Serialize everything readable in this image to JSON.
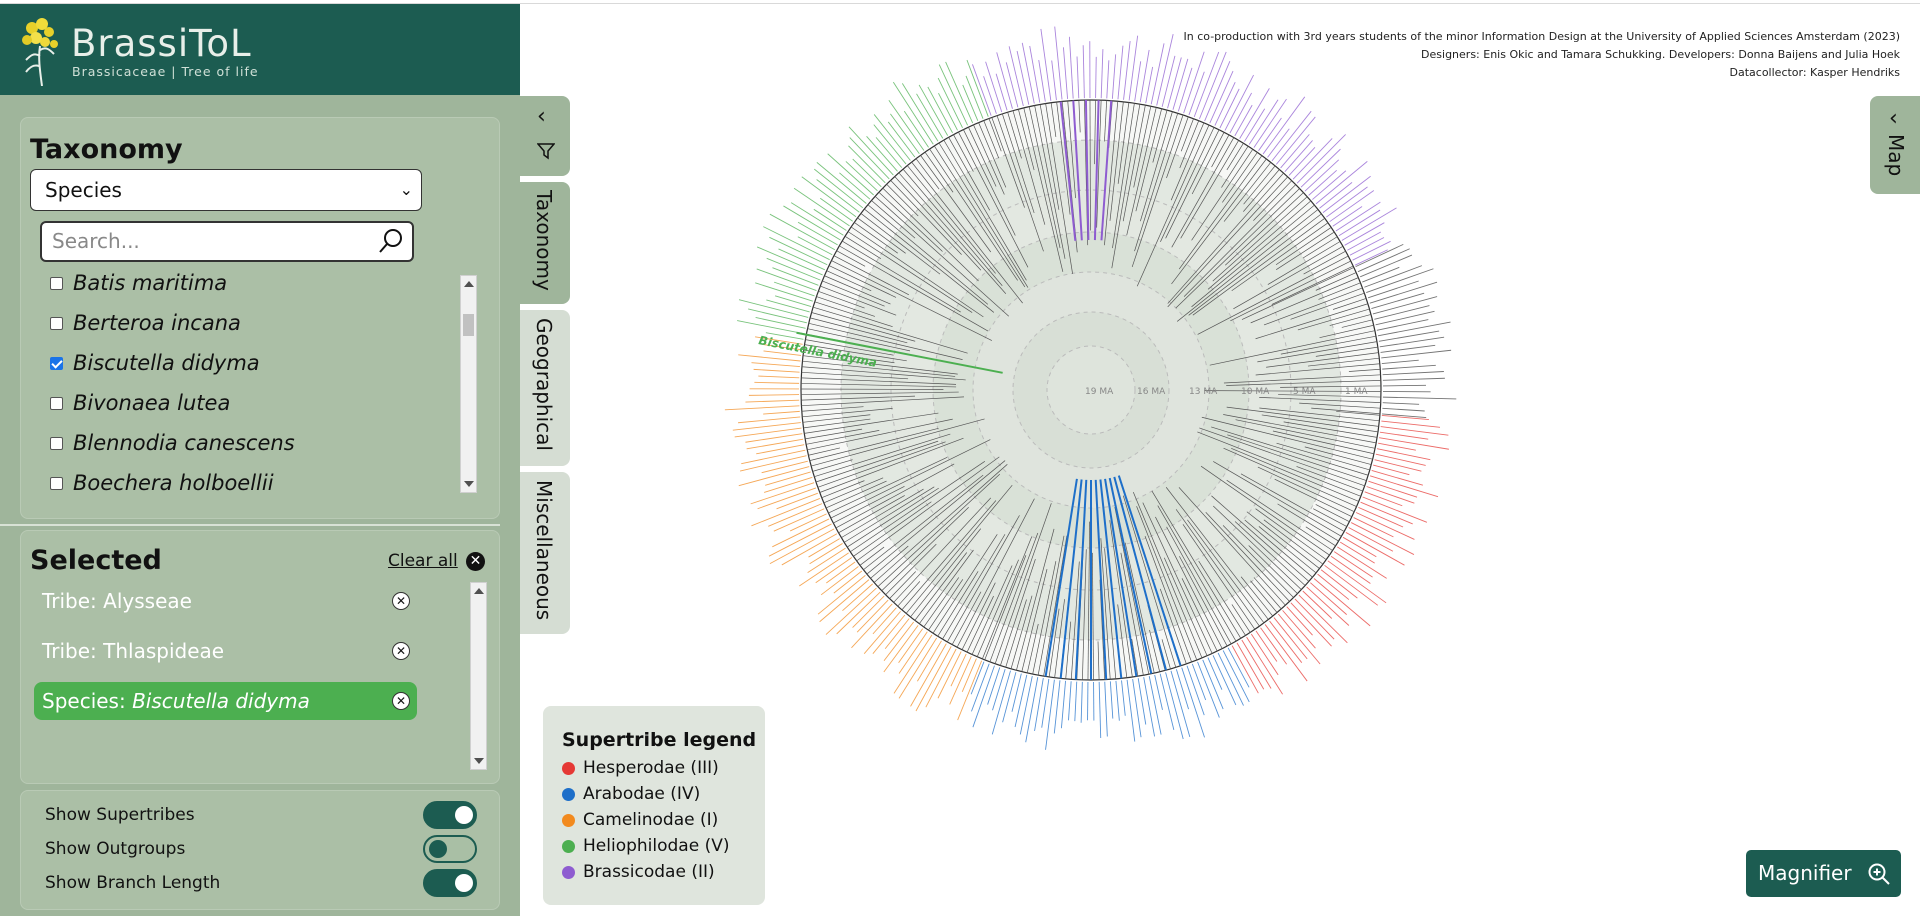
{
  "brand": {
    "title": "BrassiToL",
    "subtitle": "Brassicaceae  |  Tree of life"
  },
  "taxonomy": {
    "heading": "Taxonomy",
    "select_value": "Species",
    "search_placeholder": "Search...",
    "species": [
      {
        "name": "Batis maritima",
        "checked": false
      },
      {
        "name": "Berteroa incana",
        "checked": false
      },
      {
        "name": "Biscutella didyma",
        "checked": true
      },
      {
        "name": "Bivonaea lutea",
        "checked": false
      },
      {
        "name": "Blennodia canescens",
        "checked": false
      },
      {
        "name": "Boechera holboellii",
        "checked": false
      }
    ]
  },
  "selected": {
    "heading": "Selected",
    "clear_all": "Clear all",
    "chips": [
      {
        "prefix": "Tribe: ",
        "value": "Alysseae",
        "italic": false,
        "active": false
      },
      {
        "prefix": "Tribe: ",
        "value": "Thlaspideae",
        "italic": false,
        "active": false
      },
      {
        "prefix": "Species: ",
        "value": "Biscutella didyma",
        "italic": true,
        "active": true
      }
    ]
  },
  "toggles": [
    {
      "label": "Show Supertribes",
      "on": true
    },
    {
      "label": "Show Outgroups",
      "on": false
    },
    {
      "label": "Show Branch Length",
      "on": true
    }
  ],
  "tabs": [
    "Taxonomy",
    "Geographical",
    "Miscellaneous"
  ],
  "credits": [
    "In co-production with 3rd years students of the minor Information Design at the University of Applied Sciences Amsterdam (2023)",
    "Designers: Enis Okic and Tamara Schukking. Developers: Donna Baijens and Julia Hoek",
    "Datacollector: Kasper Hendriks"
  ],
  "tree": {
    "highlight_label": "Biscutella didyma",
    "ma_labels": [
      "19 MA",
      "16 MA",
      "13 MA",
      "10 MA",
      "5 MA",
      "1 MA"
    ]
  },
  "legend": {
    "title": "Supertribe legend",
    "items": [
      {
        "label": "Hesperodae (III)",
        "color": "#e53935"
      },
      {
        "label": "Arabodae (IV)",
        "color": "#1e6fc9"
      },
      {
        "label": "Camelinodae (I)",
        "color": "#f28a1e"
      },
      {
        "label": "Heliophilodae (V)",
        "color": "#4caf50"
      },
      {
        "label": "Brassicodae (II)",
        "color": "#8e5cd0"
      }
    ]
  },
  "map_tab": "Map",
  "magnifier": "Magnifier",
  "colors": {
    "brand": "#1c5c51",
    "sidebar": "#9fb59b",
    "selected_chip": "#4caf50"
  }
}
